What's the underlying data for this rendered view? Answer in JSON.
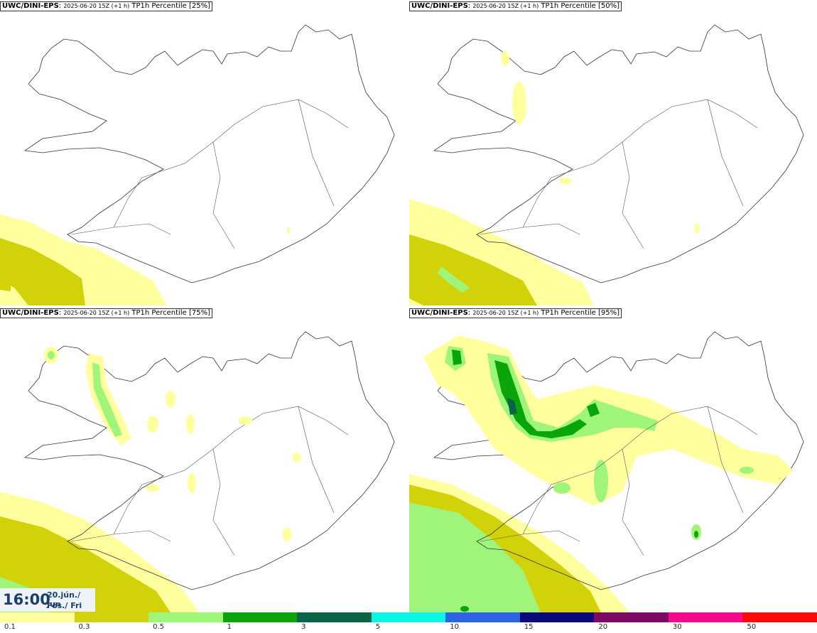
{
  "panels": [
    {
      "model": "UWC/DINI-EPS",
      "run": "2025-06-20 15Z (+1 h)",
      "param": "TP1h Percentile [25%]"
    },
    {
      "model": "UWC/DINI-EPS",
      "run": "2025-06-20 15Z (+1 h)",
      "param": "TP1h Percentile [50%]"
    },
    {
      "model": "UWC/DINI-EPS",
      "run": "2025-06-20 15Z (+1 h)",
      "param": "TP1h Percentile [75%]"
    },
    {
      "model": "UWC/DINI-EPS",
      "run": "2025-06-20 15Z (+1 h)",
      "param": "TP1h Percentile [95%]"
    }
  ],
  "time": {
    "hour": "16:00",
    "date": "20.jún./ Jun",
    "day": "Fös./ Fri"
  },
  "legend": {
    "colors": [
      "#ffff9e",
      "#d2d20a",
      "#9ef57a",
      "#0aa50a",
      "#0a6446",
      "#0af5e6",
      "#2d64e6",
      "#0a0a7d",
      "#7d0a64",
      "#f50a8c",
      "#ff0a0a"
    ],
    "ticks": [
      "0.1",
      "0.3",
      "0.5",
      "1",
      "3",
      "5",
      "10",
      "15",
      "20",
      "30",
      "50"
    ]
  }
}
